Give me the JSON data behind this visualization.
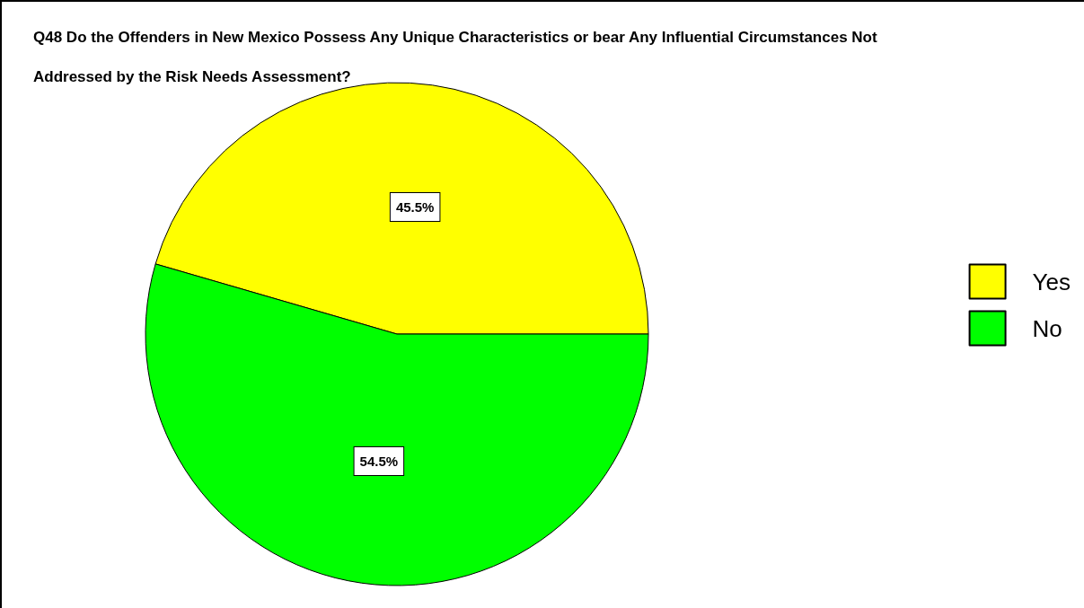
{
  "chart_data": {
    "type": "pie",
    "title": "Q48 Do the Offenders in New Mexico Possess Any Unique Characteristics or bear Any Influential Circumstances Not Addressed by the Risk Needs Assessment?",
    "categories": [
      "Yes",
      "No"
    ],
    "values": [
      45.5,
      54.5
    ],
    "colors": [
      "#ffff00",
      "#00ff00"
    ],
    "value_labels": [
      "45.5%",
      "54.5%"
    ],
    "legend": "right"
  }
}
